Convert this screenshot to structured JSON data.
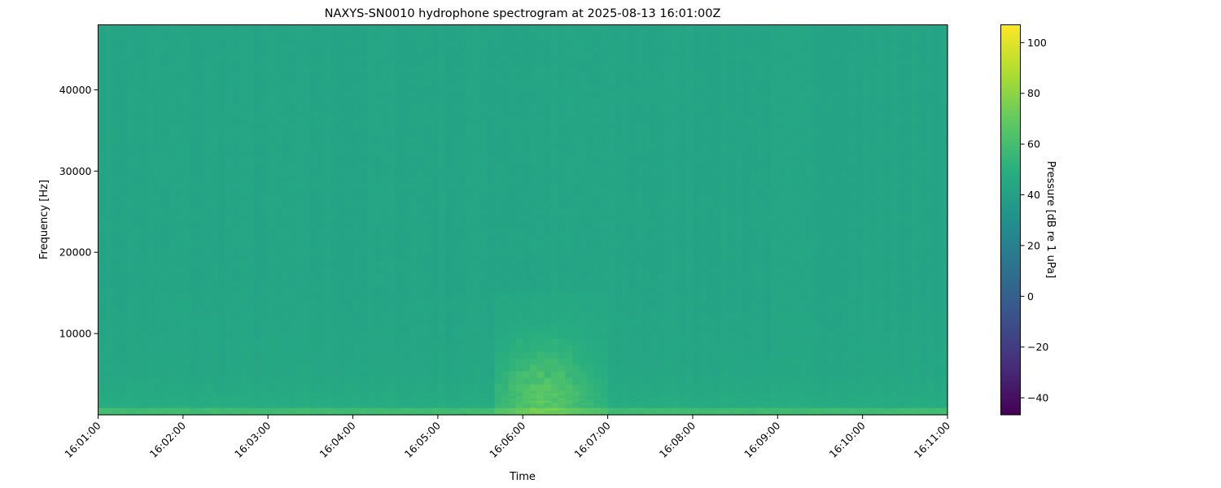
{
  "chart_data": {
    "type": "heatmap",
    "title": "NAXYS-SN0010 hydrophone spectrogram at 2025-08-13 16:01:00Z",
    "xlabel": "Time",
    "ylabel": "Frequency [Hz]",
    "colorbar_label": "Pressure [dB re 1 uPa]",
    "colormap": "viridis",
    "x_ticks": [
      "16:01:00",
      "16:02:00",
      "16:03:00",
      "16:04:00",
      "16:05:00",
      "16:06:00",
      "16:07:00",
      "16:08:00",
      "16:09:00",
      "16:10:00",
      "16:11:00"
    ],
    "xlim": [
      "16:01:00",
      "16:11:00"
    ],
    "y_ticks": [
      10000,
      20000,
      30000,
      40000
    ],
    "ylim": [
      0,
      48000
    ],
    "colorbar_ticks": [
      -40,
      -20,
      0,
      20,
      40,
      60,
      80,
      100
    ],
    "clim": [
      -46.7,
      107
    ],
    "background_level_db": 44,
    "features": [
      {
        "description_level": "low-frequency band",
        "time_range": [
          "16:01:00",
          "16:11:00"
        ],
        "freq_range": [
          0,
          1000
        ],
        "level_db": 58
      },
      {
        "description_level": "broadband low-frequency noise",
        "time_range": [
          "16:01:00",
          "16:11:00"
        ],
        "freq_range": [
          0,
          5000
        ],
        "level_db": 48
      },
      {
        "description_level": "transient event",
        "time_range": [
          "16:05:40",
          "16:07:00"
        ],
        "peak_time": "16:06:15",
        "freq_range": [
          0,
          15000
        ],
        "peak_freq": 3000,
        "level_db": 62
      }
    ]
  }
}
